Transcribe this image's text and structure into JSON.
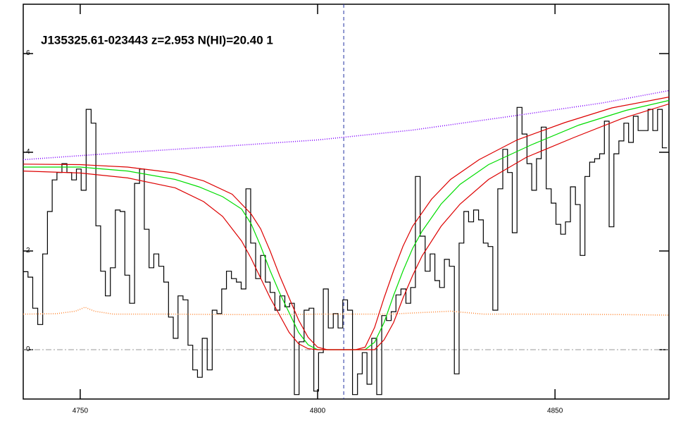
{
  "chart_data": {
    "type": "line",
    "title": "J135325.61-023443 z=2.953 N(HI)=20.40 1",
    "xlim": [
      4738,
      4874
    ],
    "xticks": [
      4750,
      4800,
      4850
    ],
    "ylim": [
      -1,
      7
    ],
    "yticks": [
      0,
      2,
      4,
      6
    ],
    "vline": 4805.5,
    "hline": 0,
    "series": [
      {
        "color": "#000000",
        "style": "steps",
        "x": [
          4738.5,
          4739.5,
          4740.5,
          4741.6,
          4742.6,
          4743.6,
          4744.6,
          4745.6,
          4746.7,
          4747.7,
          4748.7,
          4749.7,
          4750.7,
          4751.8,
          4752.8,
          4753.8,
          4754.8,
          4755.8,
          4756.9,
          4757.9,
          4758.9,
          4759.9,
          4760.9,
          4762.0,
          4763.0,
          4764.0,
          4765.0,
          4766.0,
          4767.1,
          4768.1,
          4769.1,
          4770.1,
          4771.1,
          4772.2,
          4773.2,
          4774.2,
          4775.2,
          4776.2,
          4777.3,
          4778.3,
          4779.3,
          4780.3,
          4781.3,
          4782.4,
          4783.4,
          4784.4,
          4785.4,
          4786.4,
          4787.5,
          4788.5,
          4789.5,
          4790.5,
          4791.5,
          4792.6,
          4793.6,
          4794.6,
          4795.6,
          4796.6,
          4797.7,
          4798.7,
          4799.7,
          4800.7,
          4801.7,
          4802.8,
          4803.8,
          4804.8,
          4805.8,
          4806.8,
          4807.9,
          4808.9,
          4809.9,
          4810.9,
          4811.9,
          4813.0,
          4814.0,
          4815.0,
          4816.0,
          4817.0,
          4818.1,
          4819.1,
          4820.1,
          4821.1,
          4822.1,
          4823.2,
          4824.2,
          4825.2,
          4826.2,
          4827.2,
          4828.3,
          4829.3,
          4830.3,
          4831.3,
          4832.3,
          4833.4,
          4834.4,
          4835.4,
          4836.4,
          4837.4,
          4838.5,
          4839.5,
          4840.5,
          4841.5,
          4842.5,
          4843.6,
          4844.6,
          4845.6,
          4846.6,
          4847.6,
          4848.7,
          4849.7,
          4850.7,
          4851.7,
          4852.7,
          4853.8,
          4854.8,
          4855.8,
          4856.8,
          4857.8,
          4858.9,
          4859.9,
          4860.9,
          4861.9,
          4862.9,
          4864.0,
          4865.0,
          4866.0,
          4867.0,
          4868.0,
          4869.1,
          4870.1,
          4871.1,
          4872.1,
          4873.1
        ],
        "values": [
          1.58,
          1.47,
          0.84,
          0.51,
          1.94,
          2.8,
          3.44,
          3.59,
          3.77,
          3.59,
          3.44,
          3.66,
          3.23,
          4.87,
          4.59,
          2.51,
          1.59,
          1.09,
          1.66,
          2.83,
          2.8,
          1.51,
          0.94,
          3.37,
          3.66,
          2.44,
          1.66,
          1.94,
          1.69,
          1.37,
          0.66,
          0.23,
          1.09,
          1.01,
          0.09,
          -0.41,
          -0.56,
          0.23,
          -0.41,
          0.8,
          0.73,
          1.23,
          1.59,
          1.44,
          1.37,
          1.23,
          3.26,
          2.16,
          1.44,
          1.91,
          1.37,
          1.16,
          0.8,
          1.09,
          0.87,
          0.94,
          -0.91,
          0.16,
          0.8,
          0.84,
          -0.84,
          -0.06,
          1.23,
          0.44,
          0.73,
          0.44,
          1.01,
          0.8,
          -0.91,
          -0.49,
          -0.06,
          -0.7,
          0.23,
          -0.91,
          0.69,
          0.59,
          0.77,
          1.11,
          1.23,
          0.94,
          1.26,
          3.51,
          2.3,
          1.59,
          1.94,
          1.4,
          1.26,
          1.83,
          1.69,
          -0.49,
          2.16,
          2.8,
          2.59,
          2.83,
          2.63,
          2.16,
          2.09,
          0.8,
          3.26,
          4.06,
          3.59,
          2.37,
          4.91,
          4.37,
          3.77,
          3.23,
          3.87,
          4.51,
          3.26,
          2.97,
          2.54,
          2.34,
          2.59,
          3.3,
          2.94,
          1.91,
          3.51,
          3.8,
          3.87,
          3.97,
          4.63,
          2.49,
          3.97,
          4.23,
          4.59,
          4.2,
          4.73,
          4.44,
          4.44,
          4.87,
          4.44,
          4.87,
          4.09
        ]
      },
      {
        "color": "#ff8c3c",
        "style": "dotted",
        "x": [
          4738,
          4745,
          4749,
          4751,
          4753,
          4757,
          4770,
          4785,
          4800,
          4815,
          4828,
          4835,
          4850,
          4865,
          4874
        ],
        "values": [
          0.72,
          0.73,
          0.78,
          0.86,
          0.78,
          0.72,
          0.72,
          0.71,
          0.72,
          0.72,
          0.78,
          0.72,
          0.72,
          0.71,
          0.7
        ]
      },
      {
        "color": "#8000ff",
        "style": "dotted",
        "x": [
          4738,
          4760,
          4780,
          4800,
          4820,
          4840,
          4860,
          4874
        ],
        "values": [
          3.85,
          4.0,
          4.12,
          4.25,
          4.45,
          4.72,
          5.0,
          5.25
        ]
      },
      {
        "color": "#00dd00",
        "style": "solid",
        "x": [
          4738,
          4750,
          4760,
          4770,
          4775,
          4780,
          4784,
          4786,
          4788,
          4790,
          4792,
          4794,
          4796,
          4798,
          4800,
          4810,
          4812,
          4814,
          4816,
          4818,
          4820,
          4822,
          4826,
          4830,
          4836,
          4845,
          4855,
          4865,
          4874
        ],
        "values": [
          3.7,
          3.7,
          3.62,
          3.45,
          3.3,
          3.1,
          2.85,
          2.55,
          2.1,
          1.6,
          1.15,
          0.75,
          0.35,
          0.1,
          0,
          0,
          0.15,
          0.55,
          1.1,
          1.6,
          2.05,
          2.4,
          2.95,
          3.35,
          3.75,
          4.15,
          4.55,
          4.85,
          5.05
        ]
      },
      {
        "color": "#dd0000",
        "style": "solid",
        "x": [
          4738,
          4750,
          4760,
          4770,
          4776,
          4782,
          4786,
          4788,
          4790,
          4792,
          4794,
          4796,
          4798,
          4800,
          4802,
          4808,
          4810,
          4812,
          4814,
          4816,
          4818,
          4820,
          4824,
          4828,
          4834,
          4842,
          4852,
          4862,
          4874
        ],
        "values": [
          3.76,
          3.75,
          3.7,
          3.58,
          3.42,
          3.15,
          2.75,
          2.45,
          2.0,
          1.5,
          1.05,
          0.6,
          0.25,
          0.05,
          0,
          0,
          0.05,
          0.45,
          1.05,
          1.6,
          2.1,
          2.5,
          3.05,
          3.45,
          3.85,
          4.25,
          4.6,
          4.9,
          5.12
        ]
      },
      {
        "color": "#dd0000",
        "style": "solid",
        "x": [
          4738,
          4750,
          4760,
          4770,
          4776,
          4780,
          4784,
          4786,
          4788,
          4790,
          4792,
          4794,
          4796,
          4798,
          4800,
          4812,
          4814,
          4816,
          4818,
          4820,
          4822,
          4826,
          4830,
          4836,
          4844,
          4854,
          4864,
          4874
        ],
        "values": [
          3.62,
          3.58,
          3.48,
          3.28,
          3.0,
          2.7,
          2.2,
          1.85,
          1.45,
          1.05,
          0.7,
          0.35,
          0.12,
          0.02,
          0,
          0,
          0.2,
          0.55,
          1.05,
          1.5,
          1.9,
          2.5,
          2.95,
          3.45,
          3.9,
          4.3,
          4.68,
          4.98
        ]
      }
    ]
  }
}
